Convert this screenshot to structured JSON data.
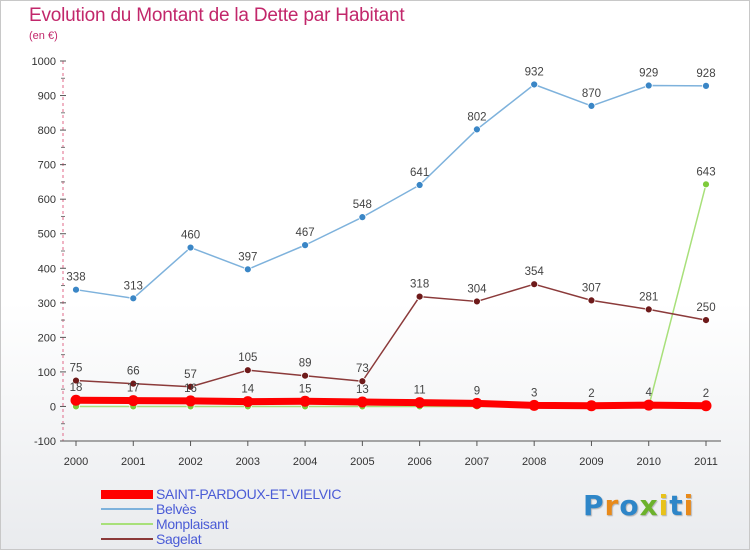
{
  "title": "Evolution du Montant de la Dette par Habitant",
  "subtitle": "(en €)",
  "logo": {
    "text": "Proxiti",
    "letters": [
      {
        "ch": "P",
        "color": "#2e86c8"
      },
      {
        "ch": "r",
        "color": "#e88a1a"
      },
      {
        "ch": "o",
        "color": "#2e86c8"
      },
      {
        "ch": "x",
        "color": "#6cb22c"
      },
      {
        "ch": "i",
        "color": "#e8c21a"
      },
      {
        "ch": "t",
        "color": "#2e86c8"
      },
      {
        "ch": "i",
        "color": "#e88a1a"
      }
    ]
  },
  "chart_data": {
    "type": "line",
    "x": [
      "2000",
      "2001",
      "2002",
      "2003",
      "2004",
      "2005",
      "2006",
      "2007",
      "2008",
      "2009",
      "2010",
      "2011"
    ],
    "ylim": [
      -100,
      1000
    ],
    "yticks": [
      "-100",
      "0",
      "100",
      "200",
      "300",
      "400",
      "500",
      "600",
      "700",
      "800",
      "900",
      "1000"
    ],
    "grid": false,
    "legend": "bottom-left",
    "series": [
      {
        "name": "SAINT-PARDOUX-ET-VIELVIC",
        "color": "#ff0000",
        "thick": true,
        "values": [
          18,
          17,
          16,
          14,
          15,
          13,
          11,
          9,
          3,
          2,
          4,
          2
        ],
        "labels": [
          "18",
          "17",
          "16",
          "14",
          "15",
          "13",
          "11",
          "9",
          "3",
          "2",
          "4",
          "2"
        ]
      },
      {
        "name": "Belvès",
        "color": "#7eb2dc",
        "marker": "#3a86c6",
        "values": [
          338,
          313,
          460,
          397,
          467,
          548,
          641,
          802,
          932,
          870,
          929,
          928
        ],
        "labels": [
          "338",
          "313",
          "460",
          "397",
          "467",
          "548",
          "641",
          "802",
          "932",
          "870",
          "929",
          "928"
        ]
      },
      {
        "name": "Monplaisant",
        "color": "#a8e07a",
        "marker": "#7ecb3a",
        "values": [
          0,
          0,
          0,
          0,
          0,
          0,
          0,
          0,
          0,
          0,
          0,
          643
        ],
        "labels": [
          "",
          "",
          "",
          "",
          "",
          "",
          "",
          "",
          "",
          "",
          "",
          "643"
        ]
      },
      {
        "name": "Sagelat",
        "color": "#8b3a3a",
        "marker": "#6e1a1a",
        "values": [
          75,
          66,
          57,
          105,
          89,
          73,
          318,
          304,
          354,
          307,
          281,
          250
        ],
        "labels": [
          "75",
          "66",
          "57",
          "105",
          "89",
          "73",
          "318",
          "304",
          "354",
          "307",
          "281",
          "250"
        ]
      }
    ]
  }
}
